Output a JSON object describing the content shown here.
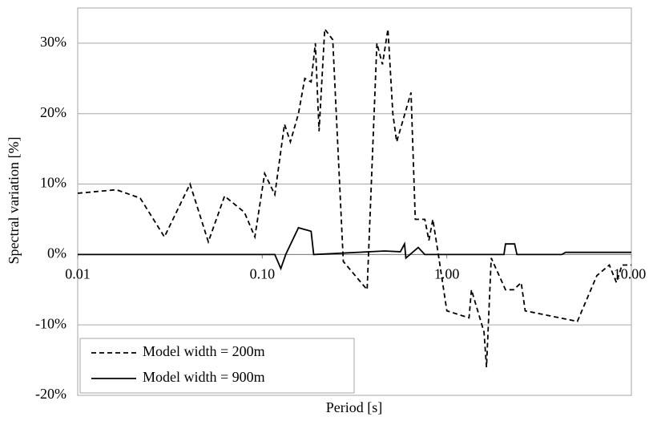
{
  "chart_data": {
    "type": "line",
    "x_label": "Period [s]",
    "y_label": "Spectral variation [%]",
    "x_scale": "log",
    "xlim": [
      0.01,
      10
    ],
    "xticks": [
      0.01,
      {
        "value": 0.1,
        "label": "0.10"
      },
      {
        "value": 1,
        "label": "1.00"
      },
      {
        "value": 10,
        "label": "10.00"
      }
    ],
    "ylim": [
      -20,
      35
    ],
    "yticks": [
      {
        "value": -20,
        "label": "-20%"
      },
      {
        "value": -10,
        "label": "-10%"
      },
      {
        "value": 0,
        "label": "0%"
      },
      {
        "value": 10,
        "label": "10%"
      },
      {
        "value": 20,
        "label": "20%"
      },
      {
        "value": 30,
        "label": "30%"
      }
    ],
    "grid": true,
    "legend": "lower left",
    "series": [
      {
        "name": "Model width = 200m",
        "color": "#000000",
        "dash": true,
        "x": [
          0.01,
          0.0162,
          0.0218,
          0.0295,
          0.0406,
          0.051,
          0.0625,
          0.08,
          0.0912,
          0.103,
          0.117,
          0.132,
          0.142,
          0.157,
          0.17,
          0.184,
          0.194,
          0.203,
          0.218,
          0.241,
          0.275,
          0.37,
          0.418,
          0.448,
          0.48,
          0.51,
          0.535,
          0.64,
          0.675,
          0.76,
          0.8,
          0.84,
          0.9,
          1.0,
          1.32,
          1.36,
          1.59,
          1.64,
          1.74,
          2.08,
          2.3,
          2.53,
          2.66,
          5.1,
          6.5,
          7.6,
          8.3,
          8.9,
          10
        ],
        "values": [
          8.7,
          9.2,
          8,
          2.5,
          10,
          1.8,
          8.3,
          6,
          2.5,
          11.5,
          8.5,
          18.5,
          16,
          20,
          25,
          24.5,
          30,
          17.5,
          32,
          30.5,
          -1,
          -5,
          30,
          27,
          32,
          20,
          16,
          23,
          5,
          5,
          2,
          5,
          0,
          -8,
          -9,
          -5,
          -11,
          -16,
          -0.5,
          -5,
          -5,
          -4,
          -8,
          -9.5,
          -3,
          -1.5,
          -4,
          -1.5,
          -1.5
        ]
      },
      {
        "name": "Model width = 900m",
        "color": "#000000",
        "dash": false,
        "x": [
          0.01,
          0.1,
          0.117,
          0.126,
          0.134,
          0.157,
          0.184,
          0.19,
          0.46,
          0.56,
          0.59,
          0.6,
          0.7,
          0.76,
          2.04,
          2.08,
          2.33,
          2.4,
          4.2,
          4.4,
          10
        ],
        "values": [
          0,
          0,
          0,
          -2,
          0,
          3.8,
          3.3,
          0,
          0.5,
          0.4,
          1.5,
          -0.5,
          1,
          0,
          0,
          1.5,
          1.5,
          0,
          0,
          0.3,
          0.3
        ]
      }
    ]
  }
}
